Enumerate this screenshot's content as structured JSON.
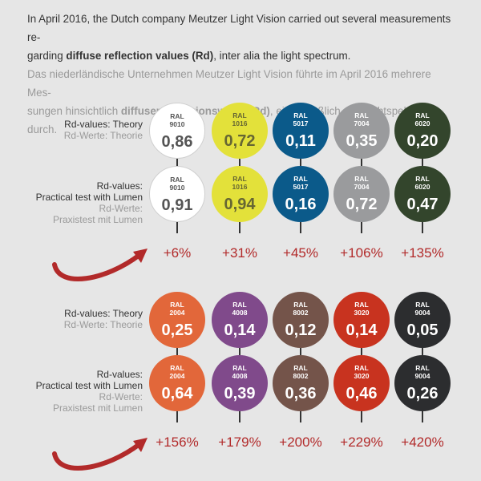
{
  "intro": {
    "en_1": "In April 2016, the Dutch company Meutzer Light Vision carried out several measurements re-",
    "en_2a": "garding ",
    "en_2b": "diffuse reflection values (Rd)",
    "en_2c": ", inter alia the light spectrum.",
    "de_1": "Das niederländische Unternehmen Meutzer Light Vision führte im April 2016 mehrere Mes-",
    "de_2a": "sungen hinsichtlich ",
    "de_2b": "diffuser Reflexionswerte (Rd)",
    "de_2c": ", einschließlich des Lichtspektrums, durch."
  },
  "labels": {
    "theory_en": "Rd-values: Theory",
    "theory_de": "Rd-Werte: Theorie",
    "practice_en_1": "Rd-values:",
    "practice_en_2": "Practical test with Lumen",
    "practice_de_1": "Rd-Werte:",
    "practice_de_2": "Praxistest mit Lumen"
  },
  "groups": [
    {
      "colors": [
        {
          "ral": "RAL",
          "code": "9010",
          "theory": "0,86",
          "practice": "0,91",
          "increase": "+6%",
          "fill": "#ffffff",
          "text": "#555555"
        },
        {
          "ral": "RAL",
          "code": "1016",
          "theory": "0,72",
          "practice": "0,94",
          "increase": "+31%",
          "fill": "#e3e13a",
          "text": "#666633"
        },
        {
          "ral": "RAL",
          "code": "5017",
          "theory": "0,11",
          "practice": "0,16",
          "increase": "+45%",
          "fill": "#0b5a8a",
          "text": "#ffffff"
        },
        {
          "ral": "RAL",
          "code": "7004",
          "theory": "0,35",
          "practice": "0,72",
          "increase": "+106%",
          "fill": "#9a9b9d",
          "text": "#ffffff"
        },
        {
          "ral": "RAL",
          "code": "6020",
          "theory": "0,20",
          "practice": "0,47",
          "increase": "+135%",
          "fill": "#33452c",
          "text": "#ffffff"
        }
      ]
    },
    {
      "colors": [
        {
          "ral": "RAL",
          "code": "2004",
          "theory": "0,25",
          "practice": "0,64",
          "increase": "+156%",
          "fill": "#e2673a",
          "text": "#ffffff"
        },
        {
          "ral": "RAL",
          "code": "4008",
          "theory": "0,14",
          "practice": "0,39",
          "increase": "+179%",
          "fill": "#804a8b",
          "text": "#ffffff"
        },
        {
          "ral": "RAL",
          "code": "8002",
          "theory": "0,12",
          "practice": "0,36",
          "increase": "+200%",
          "fill": "#74544a",
          "text": "#ffffff"
        },
        {
          "ral": "RAL",
          "code": "3020",
          "theory": "0,14",
          "practice": "0,46",
          "increase": "+229%",
          "fill": "#c8331f",
          "text": "#ffffff"
        },
        {
          "ral": "RAL",
          "code": "9004",
          "theory": "0,05",
          "practice": "0,26",
          "increase": "+420%",
          "fill": "#2c2d2f",
          "text": "#ffffff"
        }
      ]
    }
  ],
  "colors": {
    "accent_red": "#b22a2a"
  }
}
